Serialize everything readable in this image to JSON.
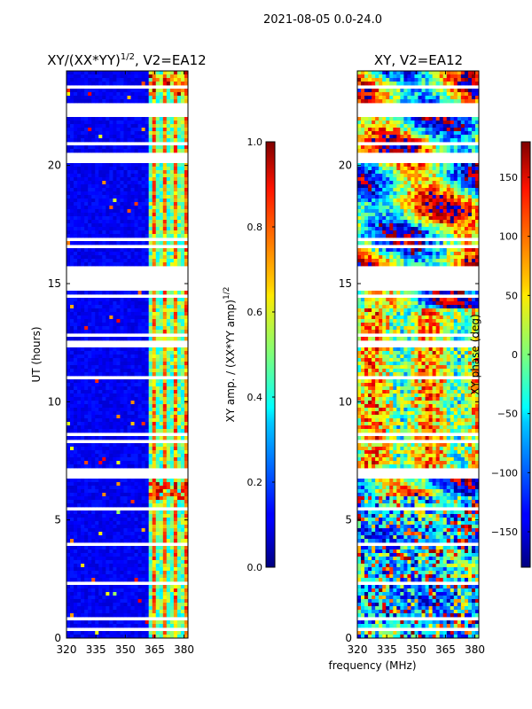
{
  "suptitle": "2021-08-05 0.0-24.0",
  "xlabel_shared": "frequency (MHz)",
  "chart_data": [
    {
      "type": "heatmap",
      "title_prefix": "XY/(XX*YY)",
      "title_exp": "1/2",
      "title_suffix": ", V2=EA12",
      "xlabel": "",
      "ylabel": "UT (hours)",
      "xlim": [
        320,
        382
      ],
      "ylim": [
        0,
        24
      ],
      "xticks": [
        320,
        335,
        350,
        365,
        380
      ],
      "yticks": [
        0,
        5,
        10,
        15,
        20
      ],
      "colorbar": {
        "label": "XY amp. / (XX*YY amp)",
        "label_exp": "1/2",
        "range": [
          0.0,
          1.0
        ],
        "ticks": [
          "0.0",
          "0.2",
          "0.4",
          "0.6",
          "0.8",
          "1.0"
        ],
        "colormap": "jet"
      }
    },
    {
      "type": "heatmap",
      "title": "XY, V2=EA12",
      "xlabel": "frequency (MHz)",
      "ylabel": "",
      "xlim": [
        320,
        382
      ],
      "ylim": [
        0,
        24
      ],
      "xticks": [
        320,
        335,
        350,
        365,
        380
      ],
      "yticks": [
        0,
        5,
        10,
        15,
        20
      ],
      "colorbar": {
        "label": "XY phase (deg)",
        "range": [
          -180,
          180
        ],
        "ticks": [
          "−150",
          "−100",
          "−50",
          "0",
          "50",
          "100",
          "150"
        ],
        "colormap": "jet"
      }
    }
  ]
}
